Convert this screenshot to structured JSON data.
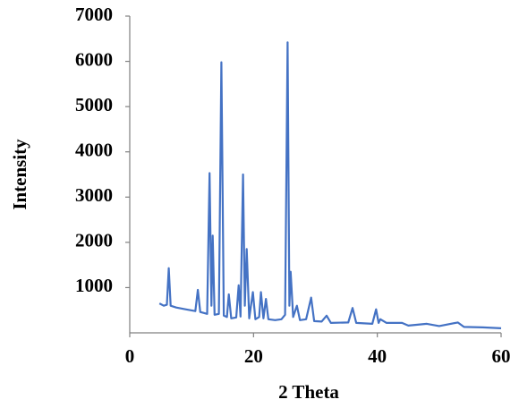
{
  "chart_data": {
    "type": "line",
    "x_label": "2 Theta",
    "y_label": "Intensity",
    "x": [
      4.8,
      5.5,
      6.0,
      6.3,
      6.6,
      7.5,
      9,
      10.6,
      11.0,
      11.4,
      12.5,
      12.9,
      13.2,
      13.4,
      13.7,
      14.4,
      14.8,
      15.2,
      15.7,
      16.0,
      16.4,
      17.2,
      17.6,
      17.9,
      18.3,
      18.6,
      18.9,
      19.3,
      19.9,
      20.3,
      20.9,
      21.2,
      21.6,
      22.0,
      22.4,
      23.5,
      24.5,
      25.1,
      25.5,
      25.8,
      26.0,
      26.4,
      27.0,
      27.5,
      28.5,
      29.3,
      29.8,
      31.0,
      31.8,
      32.5,
      35.3,
      36.0,
      36.6,
      39.2,
      39.8,
      40.2,
      40.5,
      41.5,
      44.0,
      45,
      48.0,
      50,
      53.0,
      54,
      57,
      60
    ],
    "series": [
      {
        "color": "#4472c4",
        "values": [
          650,
          600,
          620,
          1430,
          600,
          560,
          520,
          480,
          950,
          460,
          420,
          3530,
          600,
          2150,
          400,
          420,
          5980,
          380,
          350,
          850,
          320,
          340,
          1050,
          360,
          3500,
          600,
          1850,
          320,
          900,
          300,
          350,
          900,
          320,
          750,
          300,
          280,
          300,
          400,
          6420,
          600,
          1350,
          350,
          600,
          280,
          300,
          780,
          260,
          250,
          380,
          220,
          230,
          550,
          220,
          200,
          520,
          220,
          300,
          220,
          220,
          160,
          200,
          150,
          230,
          130,
          120,
          100
        ]
      }
    ],
    "xlim": [
      0,
      60
    ],
    "xticks": [
      0,
      20,
      40,
      60
    ],
    "ylim": [
      0,
      7000
    ],
    "yticks": [
      1000,
      2000,
      3000,
      4000,
      5000,
      6000,
      7000
    ]
  }
}
